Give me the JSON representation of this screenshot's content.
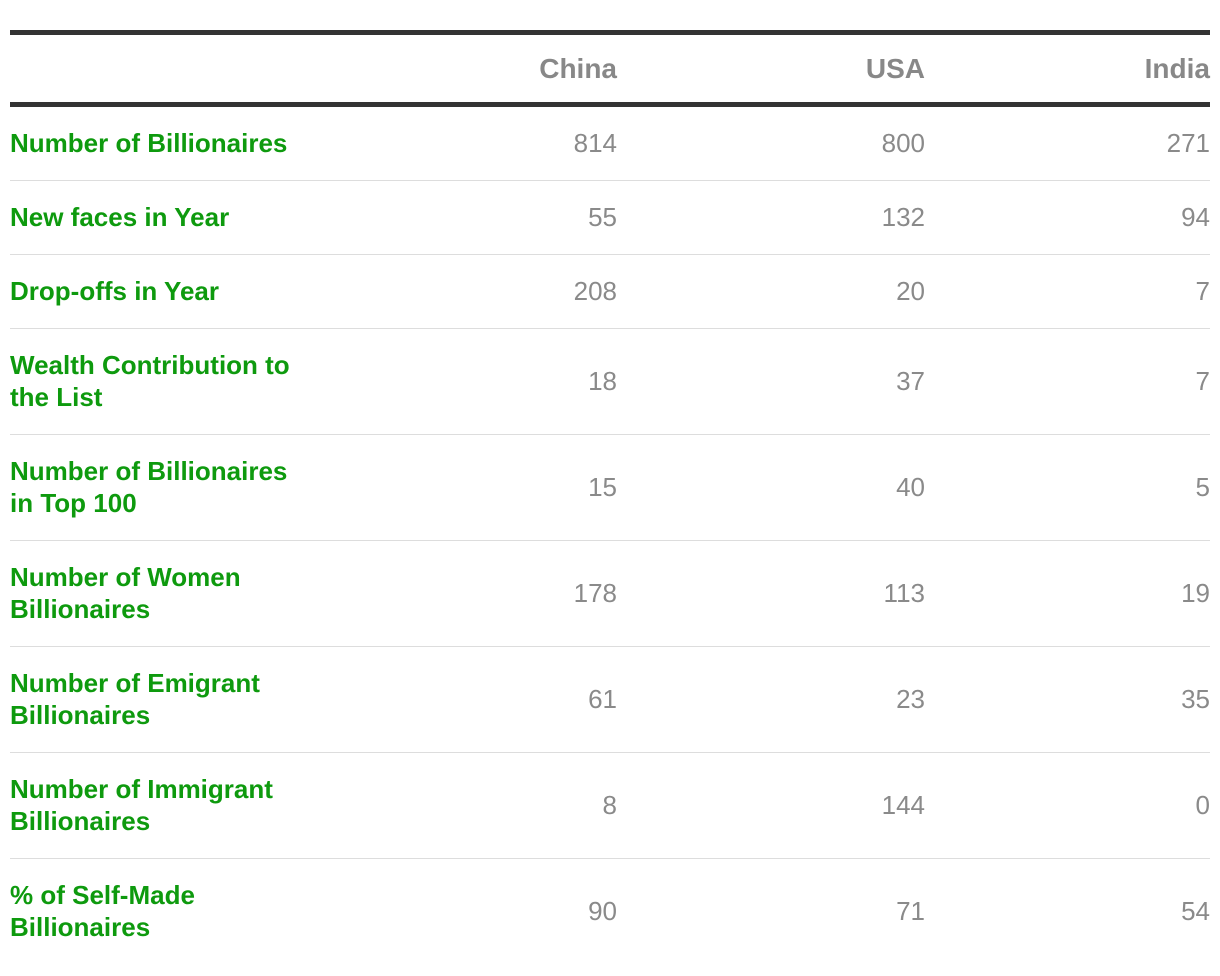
{
  "table": {
    "columns": [
      "China",
      "USA",
      "India"
    ],
    "rows": [
      {
        "label": "Number of Billionaires",
        "values": [
          814,
          800,
          271
        ]
      },
      {
        "label": "New faces in Year",
        "values": [
          55,
          132,
          94
        ]
      },
      {
        "label": "Drop-offs in Year",
        "values": [
          208,
          20,
          7
        ]
      },
      {
        "label": "Wealth Contribution to the List",
        "values": [
          18,
          37,
          7
        ]
      },
      {
        "label": "Number of Billionaires in Top 100",
        "values": [
          15,
          40,
          5
        ]
      },
      {
        "label": "Number of Women Billionaires",
        "values": [
          178,
          113,
          19
        ]
      },
      {
        "label": "Number of Emigrant Billionaires",
        "values": [
          61,
          23,
          35
        ]
      },
      {
        "label": "Number of Immigrant Billionaires",
        "values": [
          8,
          144,
          0
        ]
      },
      {
        "label": "% of Self-Made Billionaires",
        "values": [
          90,
          71,
          54
        ]
      }
    ]
  }
}
